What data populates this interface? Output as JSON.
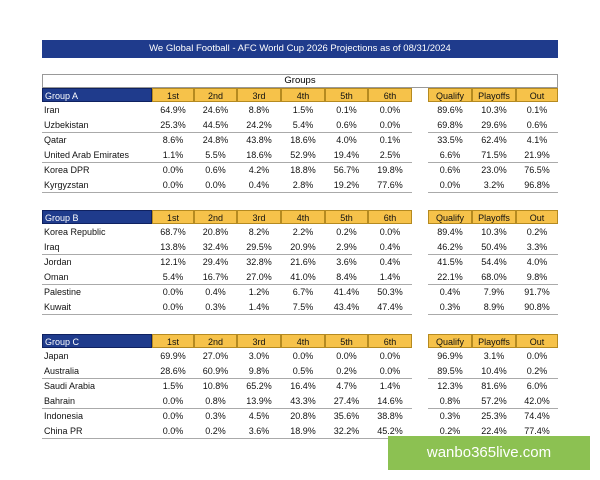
{
  "title": "We Global Football - AFC World Cup 2026 Projections as of 08/31/2024",
  "groups_label": "Groups",
  "columns": [
    "1st",
    "2nd",
    "3rd",
    "4th",
    "5th",
    "6th",
    "Qualify",
    "Playoffs",
    "Out"
  ],
  "groups": [
    {
      "name": "Group A",
      "rows": [
        [
          "Iran",
          "64.9%",
          "24.6%",
          "8.8%",
          "1.5%",
          "0.1%",
          "0.0%",
          "89.6%",
          "10.3%",
          "0.1%"
        ],
        [
          "Uzbekistan",
          "25.3%",
          "44.5%",
          "24.2%",
          "5.4%",
          "0.6%",
          "0.0%",
          "69.8%",
          "29.6%",
          "0.6%"
        ],
        [
          "Qatar",
          "8.6%",
          "24.8%",
          "43.8%",
          "18.6%",
          "4.0%",
          "0.1%",
          "33.5%",
          "62.4%",
          "4.1%"
        ],
        [
          "United Arab Emirates",
          "1.1%",
          "5.5%",
          "18.6%",
          "52.9%",
          "19.4%",
          "2.5%",
          "6.6%",
          "71.5%",
          "21.9%"
        ],
        [
          "Korea DPR",
          "0.0%",
          "0.6%",
          "4.2%",
          "18.8%",
          "56.7%",
          "19.8%",
          "0.6%",
          "23.0%",
          "76.5%"
        ],
        [
          "Kyrgyzstan",
          "0.0%",
          "0.0%",
          "0.4%",
          "2.8%",
          "19.2%",
          "77.6%",
          "0.0%",
          "3.2%",
          "96.8%"
        ]
      ]
    },
    {
      "name": "Group B",
      "rows": [
        [
          "Korea Republic",
          "68.7%",
          "20.8%",
          "8.2%",
          "2.2%",
          "0.2%",
          "0.0%",
          "89.4%",
          "10.3%",
          "0.2%"
        ],
        [
          "Iraq",
          "13.8%",
          "32.4%",
          "29.5%",
          "20.9%",
          "2.9%",
          "0.4%",
          "46.2%",
          "50.4%",
          "3.3%"
        ],
        [
          "Jordan",
          "12.1%",
          "29.4%",
          "32.8%",
          "21.6%",
          "3.6%",
          "0.4%",
          "41.5%",
          "54.4%",
          "4.0%"
        ],
        [
          "Oman",
          "5.4%",
          "16.7%",
          "27.0%",
          "41.0%",
          "8.4%",
          "1.4%",
          "22.1%",
          "68.0%",
          "9.8%"
        ],
        [
          "Palestine",
          "0.0%",
          "0.4%",
          "1.2%",
          "6.7%",
          "41.4%",
          "50.3%",
          "0.4%",
          "7.9%",
          "91.7%"
        ],
        [
          "Kuwait",
          "0.0%",
          "0.3%",
          "1.4%",
          "7.5%",
          "43.4%",
          "47.4%",
          "0.3%",
          "8.9%",
          "90.8%"
        ]
      ]
    },
    {
      "name": "Group C",
      "rows": [
        [
          "Japan",
          "69.9%",
          "27.0%",
          "3.0%",
          "0.0%",
          "0.0%",
          "0.0%",
          "96.9%",
          "3.1%",
          "0.0%"
        ],
        [
          "Australia",
          "28.6%",
          "60.9%",
          "9.8%",
          "0.5%",
          "0.2%",
          "0.0%",
          "89.5%",
          "10.4%",
          "0.2%"
        ],
        [
          "Saudi Arabia",
          "1.5%",
          "10.8%",
          "65.2%",
          "16.4%",
          "4.7%",
          "1.4%",
          "12.3%",
          "81.6%",
          "6.0%"
        ],
        [
          "Bahrain",
          "0.0%",
          "0.8%",
          "13.9%",
          "43.3%",
          "27.4%",
          "14.6%",
          "0.8%",
          "57.2%",
          "42.0%"
        ],
        [
          "Indonesia",
          "0.0%",
          "0.3%",
          "4.5%",
          "20.8%",
          "35.6%",
          "38.8%",
          "0.3%",
          "25.3%",
          "74.4%"
        ],
        [
          "China PR",
          "0.0%",
          "0.2%",
          "3.6%",
          "18.9%",
          "32.2%",
          "45.2%",
          "0.2%",
          "22.4%",
          "77.4%"
        ]
      ]
    }
  ],
  "watermark": "wanbo365live.com"
}
